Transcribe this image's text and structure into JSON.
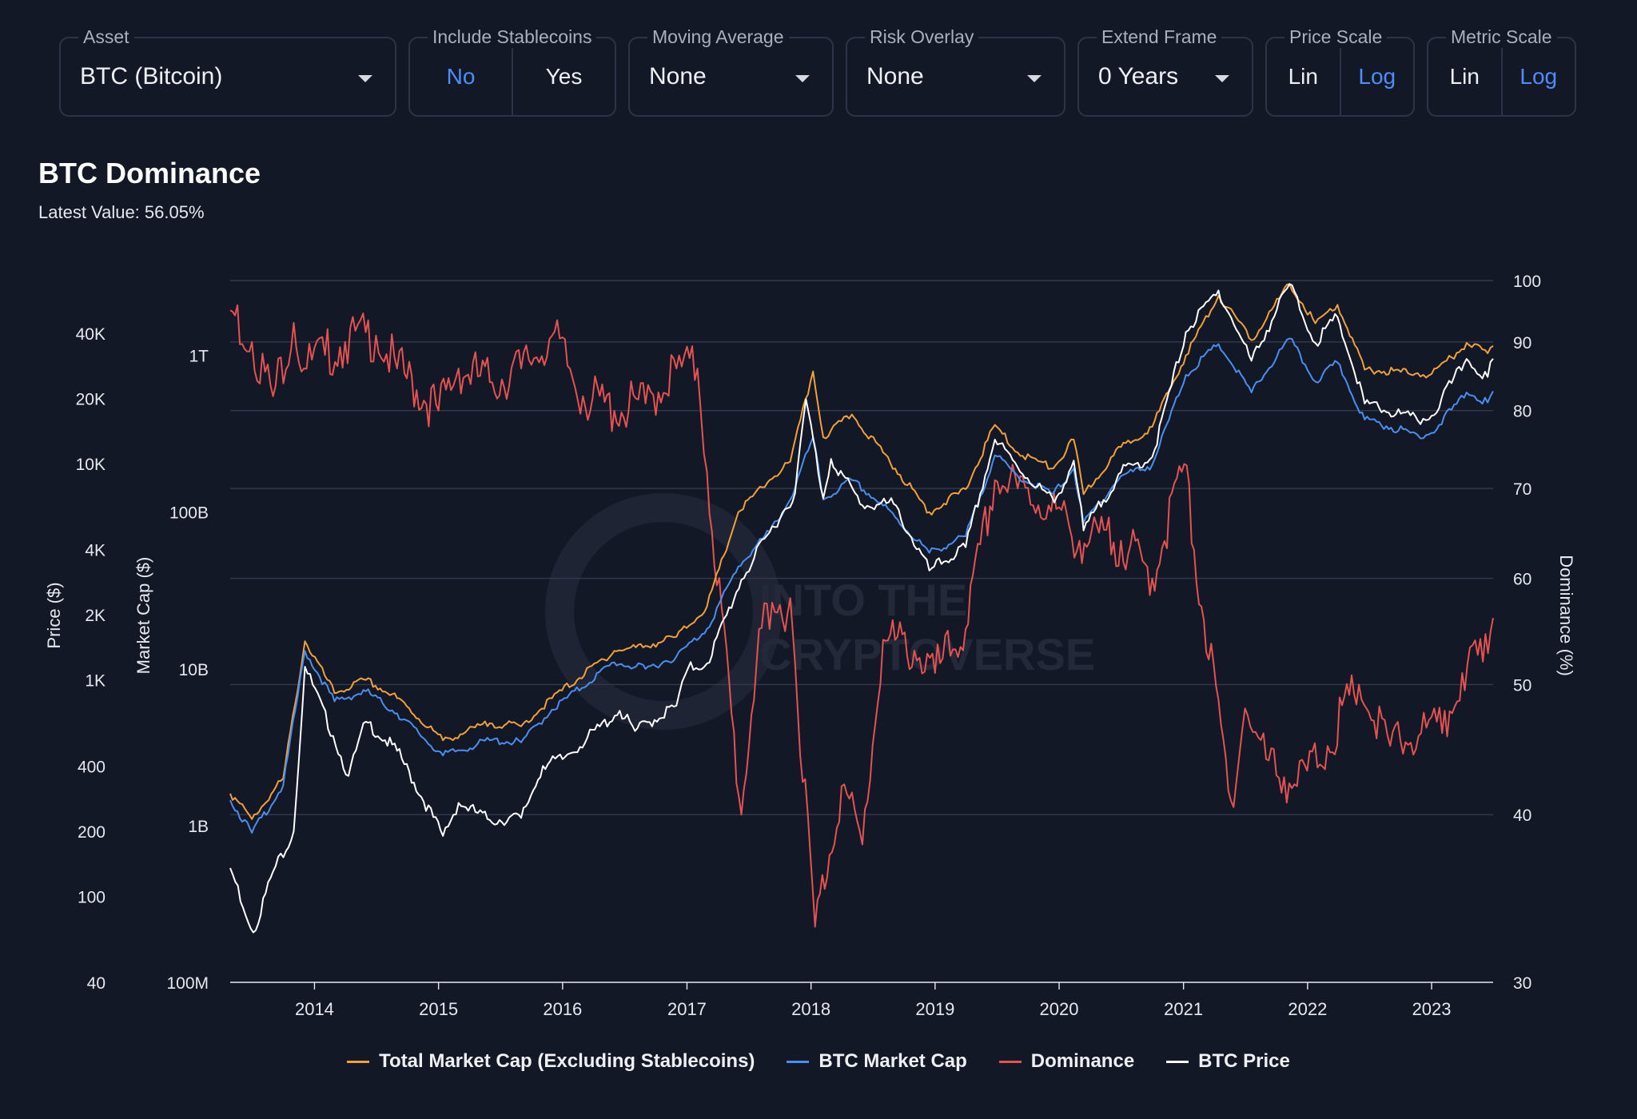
{
  "controls": {
    "asset": {
      "label": "Asset",
      "value": "BTC (Bitcoin)"
    },
    "stablecoins": {
      "label": "Include Stablecoins",
      "options": [
        "No",
        "Yes"
      ],
      "selected": "No"
    },
    "moving_average": {
      "label": "Moving Average",
      "value": "None"
    },
    "risk_overlay": {
      "label": "Risk Overlay",
      "value": "None"
    },
    "extend_frame": {
      "label": "Extend Frame",
      "value": "0 Years"
    },
    "price_scale": {
      "label": "Price Scale",
      "options": [
        "Lin",
        "Log"
      ],
      "selected": "Log"
    },
    "metric_scale": {
      "label": "Metric Scale",
      "options": [
        "Lin",
        "Log"
      ],
      "selected": "Log"
    }
  },
  "header": {
    "title": "BTC Dominance",
    "latest_label": "Latest Value:",
    "latest_value": "56.05%"
  },
  "watermark": {
    "text_line1": "INTO THE",
    "text_line2": "CRYPTOVERSE"
  },
  "colors": {
    "total_market_cap": "#f0a13c",
    "btc_market_cap": "#4a8ff0",
    "dominance": "#e45252",
    "btc_price": "#ffffff",
    "grid": "#343a4c",
    "accent": "#4f8cff"
  },
  "chart_data": {
    "type": "line",
    "x_range": [
      "2013-04-28",
      "2023-07-01"
    ],
    "x_ticks": [
      "2014",
      "2015",
      "2016",
      "2017",
      "2018",
      "2019",
      "2020",
      "2021",
      "2022",
      "2023"
    ],
    "axes": {
      "price": {
        "label": "Price ($)",
        "scale": "log",
        "range": [
          40,
          70000
        ],
        "ticks": [
          40,
          100,
          200,
          400,
          1000,
          2000,
          4000,
          10000,
          20000,
          40000
        ],
        "tick_labels": [
          "40",
          "100",
          "200",
          "400",
          "1K",
          "2K",
          "4K",
          "10K",
          "20K",
          "40K"
        ]
      },
      "market_cap": {
        "label": "Market Cap ($)",
        "scale": "log",
        "range": [
          100000000,
          3000000000000
        ],
        "ticks": [
          100000000,
          1000000000,
          10000000000,
          100000000000,
          1000000000000
        ],
        "tick_labels": [
          "100M",
          "1B",
          "10B",
          "100B",
          "1T"
        ]
      },
      "dominance": {
        "label": "Dominance (%)",
        "scale": "log",
        "range": [
          30,
          100
        ],
        "ticks": [
          30,
          40,
          50,
          60,
          70,
          80,
          90,
          100
        ],
        "tick_labels": [
          "30",
          "40",
          "50",
          "60",
          "70",
          "80",
          "90",
          "100"
        ]
      }
    },
    "grid": true,
    "legend_position": "bottom-center",
    "series": [
      {
        "name": "Total Market Cap (Excluding Stablecoins)",
        "axis": "market_cap",
        "color": "#f0a13c",
        "points": [
          [
            "2013-04-28",
            1600000000.0
          ],
          [
            "2013-07-01",
            1100000000.0
          ],
          [
            "2013-10-01",
            2000000000.0
          ],
          [
            "2013-12-04",
            15000000000.0
          ],
          [
            "2014-03-01",
            7000000000.0
          ],
          [
            "2014-06-01",
            8500000000.0
          ],
          [
            "2014-09-01",
            6500000000.0
          ],
          [
            "2015-01-14",
            3500000000.0
          ],
          [
            "2015-06-01",
            4500000000.0
          ],
          [
            "2015-09-01",
            4300000000.0
          ],
          [
            "2015-12-01",
            6500000000.0
          ],
          [
            "2016-06-01",
            13000000000.0
          ],
          [
            "2016-09-01",
            14000000000.0
          ],
          [
            "2016-12-01",
            16000000000.0
          ],
          [
            "2017-03-01",
            25000000000.0
          ],
          [
            "2017-06-01",
            100000000000.0
          ],
          [
            "2017-09-01",
            160000000000.0
          ],
          [
            "2017-11-01",
            210000000000.0
          ],
          [
            "2018-01-07",
            790000000000.0
          ],
          [
            "2018-02-06",
            300000000000.0
          ],
          [
            "2018-05-01",
            420000000000.0
          ],
          [
            "2018-08-01",
            240000000000.0
          ],
          [
            "2018-12-15",
            100000000000.0
          ],
          [
            "2019-04-01",
            140000000000.0
          ],
          [
            "2019-06-26",
            360000000000.0
          ],
          [
            "2019-09-01",
            240000000000.0
          ],
          [
            "2019-12-15",
            190000000000.0
          ],
          [
            "2020-02-13",
            290000000000.0
          ],
          [
            "2020-03-13",
            130000000000.0
          ],
          [
            "2020-07-01",
            260000000000.0
          ],
          [
            "2020-10-01",
            350000000000.0
          ],
          [
            "2021-01-08",
            1000000000000.0
          ],
          [
            "2021-04-14",
            2400000000000.0
          ],
          [
            "2021-07-20",
            1250000000000.0
          ],
          [
            "2021-11-09",
            2850000000000.0
          ],
          [
            "2022-01-24",
            1600000000000.0
          ],
          [
            "2022-03-30",
            2100000000000.0
          ],
          [
            "2022-06-18",
            810000000000.0
          ],
          [
            "2022-11-21",
            770000000000.0
          ],
          [
            "2023-01-01",
            760000000000.0
          ],
          [
            "2023-03-01",
            970000000000.0
          ],
          [
            "2023-04-14",
            1200000000000.0
          ],
          [
            "2023-06-15",
            1030000000000.0
          ],
          [
            "2023-07-01",
            1150000000000.0
          ]
        ]
      },
      {
        "name": "BTC Market Cap",
        "axis": "market_cap",
        "color": "#4a8ff0",
        "points": [
          [
            "2013-04-28",
            1450000000.0
          ],
          [
            "2013-07-01",
            900000000.0
          ],
          [
            "2013-10-01",
            1800000000.0
          ],
          [
            "2013-12-04",
            13000000000.0
          ],
          [
            "2014-03-01",
            6200000000.0
          ],
          [
            "2014-06-01",
            7200000000.0
          ],
          [
            "2014-09-01",
            5200000000.0
          ],
          [
            "2015-01-14",
            2800000000.0
          ],
          [
            "2015-06-01",
            3500000000.0
          ],
          [
            "2015-09-01",
            3400000000.0
          ],
          [
            "2015-12-01",
            5500000000.0
          ],
          [
            "2016-06-01",
            11000000000.0
          ],
          [
            "2016-09-01",
            10000000000.0
          ],
          [
            "2016-12-01",
            12000000000.0
          ],
          [
            "2017-03-01",
            18000000000.0
          ],
          [
            "2017-06-01",
            45000000000.0
          ],
          [
            "2017-09-01",
            75000000000.0
          ],
          [
            "2017-11-01",
            120000000000.0
          ],
          [
            "2018-01-07",
            300000000000.0
          ],
          [
            "2018-02-06",
            120000000000.0
          ],
          [
            "2018-05-01",
            160000000000.0
          ],
          [
            "2018-08-01",
            110000000000.0
          ],
          [
            "2018-12-15",
            55000000000.0
          ],
          [
            "2019-04-01",
            70000000000.0
          ],
          [
            "2019-06-26",
            230000000000.0
          ],
          [
            "2019-09-01",
            170000000000.0
          ],
          [
            "2019-12-15",
            130000000000.0
          ],
          [
            "2020-02-13",
            190000000000.0
          ],
          [
            "2020-03-13",
            85000000000.0
          ],
          [
            "2020-07-01",
            170000000000.0
          ],
          [
            "2020-10-01",
            200000000000.0
          ],
          [
            "2021-01-08",
            750000000000.0
          ],
          [
            "2021-04-14",
            1180000000000.0
          ],
          [
            "2021-07-20",
            580000000000.0
          ],
          [
            "2021-11-09",
            1280000000000.0
          ],
          [
            "2022-01-24",
            680000000000.0
          ],
          [
            "2022-03-30",
            900000000000.0
          ],
          [
            "2022-06-18",
            390000000000.0
          ],
          [
            "2022-11-21",
            310000000000.0
          ],
          [
            "2023-01-01",
            320000000000.0
          ],
          [
            "2023-03-01",
            450000000000.0
          ],
          [
            "2023-04-14",
            580000000000.0
          ],
          [
            "2023-06-15",
            500000000000.0
          ],
          [
            "2023-07-01",
            590000000000.0
          ]
        ]
      },
      {
        "name": "Dominance",
        "axis": "dominance",
        "color": "#e45252",
        "points": [
          [
            "2013-04-28",
            95
          ],
          [
            "2013-07-01",
            90
          ],
          [
            "2013-09-01",
            82
          ],
          [
            "2013-11-01",
            93
          ],
          [
            "2013-12-01",
            86
          ],
          [
            "2014-02-01",
            88
          ],
          [
            "2014-04-01",
            90
          ],
          [
            "2014-07-01",
            91
          ],
          [
            "2014-09-01",
            86
          ],
          [
            "2015-01-01",
            80
          ],
          [
            "2015-03-01",
            86
          ],
          [
            "2015-06-01",
            84
          ],
          [
            "2015-09-01",
            86
          ],
          [
            "2015-12-01",
            91
          ],
          [
            "2016-03-01",
            82
          ],
          [
            "2016-06-01",
            80
          ],
          [
            "2016-09-01",
            81
          ],
          [
            "2016-12-01",
            86
          ],
          [
            "2017-02-01",
            86
          ],
          [
            "2017-03-01",
            72
          ],
          [
            "2017-06-10",
            40
          ],
          [
            "2017-08-01",
            55
          ],
          [
            "2017-09-01",
            55
          ],
          [
            "2017-11-01",
            58
          ],
          [
            "2018-01-13",
            33
          ],
          [
            "2018-04-01",
            42
          ],
          [
            "2018-06-01",
            38
          ],
          [
            "2018-08-01",
            54
          ],
          [
            "2018-11-01",
            53
          ],
          [
            "2019-01-01",
            51
          ],
          [
            "2019-04-01",
            55
          ],
          [
            "2019-06-26",
            71
          ],
          [
            "2019-09-01",
            70
          ],
          [
            "2019-12-01",
            68
          ],
          [
            "2020-03-01",
            64
          ],
          [
            "2020-07-01",
            64
          ],
          [
            "2020-10-01",
            60
          ],
          [
            "2021-01-03",
            73
          ],
          [
            "2021-02-01",
            63
          ],
          [
            "2021-05-20",
            41
          ],
          [
            "2021-07-01",
            48
          ],
          [
            "2021-09-01",
            44
          ],
          [
            "2021-12-01",
            42
          ],
          [
            "2022-03-01",
            45
          ],
          [
            "2022-06-01",
            50
          ],
          [
            "2022-07-15",
            47
          ],
          [
            "2022-09-01",
            45
          ],
          [
            "2022-12-01",
            46
          ],
          [
            "2023-02-01",
            46
          ],
          [
            "2023-04-01",
            51
          ],
          [
            "2023-06-01",
            52
          ],
          [
            "2023-07-01",
            56.05
          ]
        ]
      },
      {
        "name": "BTC Price",
        "axis": "price",
        "color": "#ffffff",
        "points": [
          [
            "2013-04-28",
            135
          ],
          [
            "2013-07-05",
            68
          ],
          [
            "2013-09-01",
            130
          ],
          [
            "2013-11-01",
            200
          ],
          [
            "2013-12-04",
            1150
          ],
          [
            "2014-02-25",
            550
          ],
          [
            "2014-04-11",
            360
          ],
          [
            "2014-06-01",
            640
          ],
          [
            "2014-09-01",
            470
          ],
          [
            "2015-01-14",
            190
          ],
          [
            "2015-03-01",
            270
          ],
          [
            "2015-06-01",
            225
          ],
          [
            "2015-09-01",
            230
          ],
          [
            "2015-11-04",
            400
          ],
          [
            "2016-01-01",
            430
          ],
          [
            "2016-06-17",
            720
          ],
          [
            "2016-08-01",
            580
          ],
          [
            "2016-12-01",
            760
          ],
          [
            "2017-01-04",
            1130
          ],
          [
            "2017-03-01",
            1190
          ],
          [
            "2017-06-10",
            2900
          ],
          [
            "2017-09-01",
            4800
          ],
          [
            "2017-11-15",
            7300
          ],
          [
            "2017-12-17",
            19800
          ],
          [
            "2018-02-06",
            6900
          ],
          [
            "2018-03-01",
            10500
          ],
          [
            "2018-06-01",
            6400
          ],
          [
            "2018-09-01",
            6500
          ],
          [
            "2018-12-15",
            3200
          ],
          [
            "2019-04-01",
            4100
          ],
          [
            "2019-06-26",
            12900
          ],
          [
            "2019-09-01",
            9600
          ],
          [
            "2019-12-18",
            6600
          ],
          [
            "2020-02-13",
            10300
          ],
          [
            "2020-03-13",
            4900
          ],
          [
            "2020-07-01",
            9100
          ],
          [
            "2020-10-01",
            10700
          ],
          [
            "2021-01-08",
            40500
          ],
          [
            "2021-04-14",
            63000
          ],
          [
            "2021-07-20",
            29800
          ],
          [
            "2021-11-09",
            67500
          ],
          [
            "2022-01-24",
            36000
          ],
          [
            "2022-03-30",
            47500
          ],
          [
            "2022-06-18",
            18900
          ],
          [
            "2022-11-21",
            15800
          ],
          [
            "2023-01-01",
            16600
          ],
          [
            "2023-03-01",
            23500
          ],
          [
            "2023-04-14",
            30400
          ],
          [
            "2023-06-15",
            25100
          ],
          [
            "2023-07-01",
            30500
          ]
        ]
      }
    ]
  }
}
